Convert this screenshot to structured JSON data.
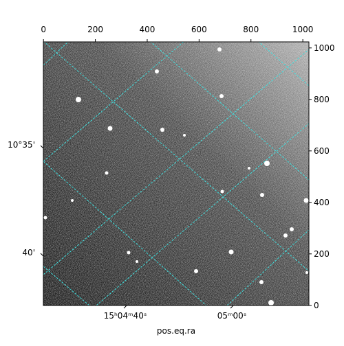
{
  "chart_data": {
    "type": "image",
    "xlabel": "pos.eq.ra",
    "xlim": [
      -0.5,
      1023.5
    ],
    "xticks": [
      0,
      200,
      400,
      600,
      800,
      1000
    ],
    "ylim": [
      -0.5,
      1023.5
    ],
    "yticks": [
      0,
      200,
      400,
      600,
      800,
      1000
    ],
    "world_xticks": [
      "15ʰ04ᵐ40ˢ",
      "05ᵐ00ˢ"
    ],
    "world_yticks": [
      "10°35'",
      "40'"
    ],
    "grid_color": "#40e0e0"
  }
}
